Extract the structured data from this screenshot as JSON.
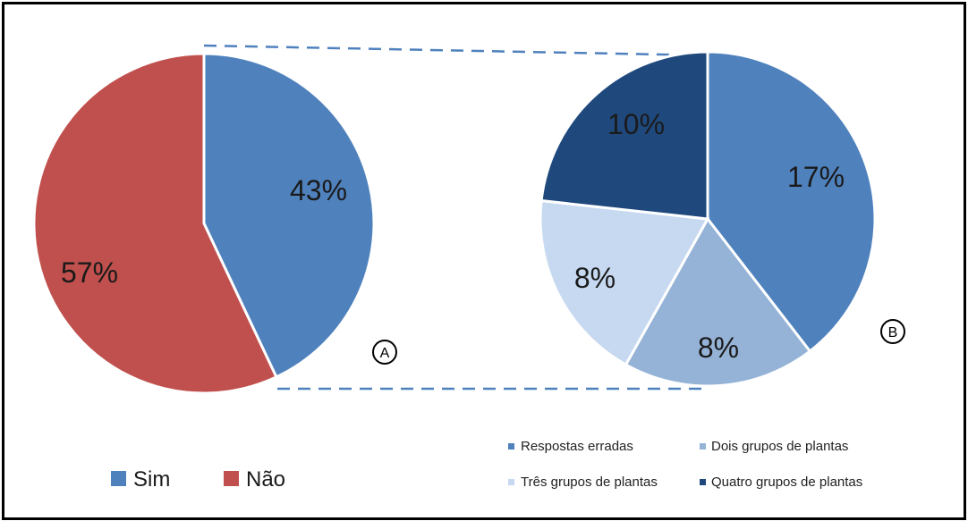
{
  "colors": {
    "sim": "#4F81BD",
    "nao": "#C0504D",
    "respostas_erradas": "#4F81BD",
    "dois_grupos": "#95B3D7",
    "tres_grupos": "#C6D9F0",
    "quatro_grupos": "#1F497D",
    "connector": "#4F81BD"
  },
  "chart_data": [
    {
      "type": "pie",
      "marker": "A",
      "slices": [
        {
          "label": "Sim",
          "value": 43,
          "display": "43%",
          "color": "#4F81BD"
        },
        {
          "label": "Não",
          "value": 57,
          "display": "57%",
          "color": "#C0504D"
        }
      ],
      "legend": [
        "Sim",
        "Não"
      ],
      "legend_placement": "bottom-left"
    },
    {
      "type": "pie",
      "marker": "B",
      "slices": [
        {
          "label": "Respostas erradas",
          "value": 17,
          "display": "17%",
          "color": "#4F81BD"
        },
        {
          "label": "Dois grupos de plantas",
          "value": 8,
          "display": "8%",
          "color": "#95B3D7"
        },
        {
          "label": "Três grupos de plantas",
          "value": 8,
          "display": "8%",
          "color": "#C6D9F0"
        },
        {
          "label": "Quatro grupos de plantas",
          "value": 10,
          "display": "10%",
          "color": "#1F497D"
        }
      ],
      "legend": [
        "Respostas erradas",
        "Dois grupos de plantas",
        "Três grupos de plantas",
        "Quatro grupos de plantas"
      ],
      "legend_placement": "bottom-right"
    }
  ]
}
